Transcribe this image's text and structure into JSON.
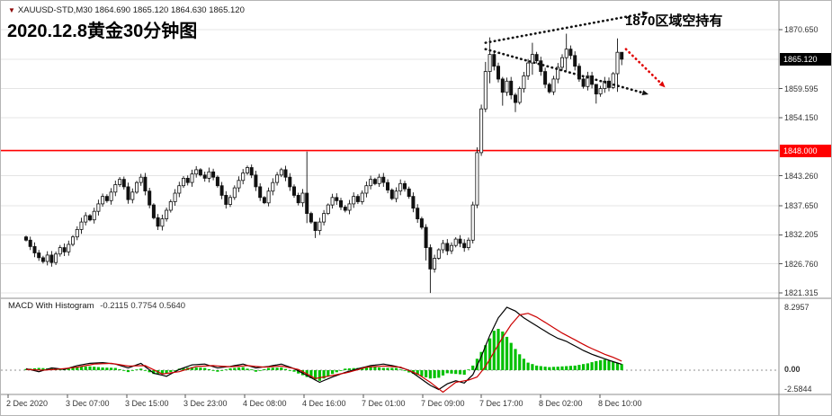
{
  "header": {
    "quote": "XAUUSD-STD,M30 1864.690 1865.120 1864.630 1865.120",
    "title": "2020.12.8黄金30分钟图"
  },
  "annotation": {
    "text": "1870区域空持有"
  },
  "price_axis": {
    "labels": [
      "1870.650",
      "1859.595",
      "1854.150",
      "1843.260",
      "1837.650",
      "1832.205",
      "1826.760",
      "1821.315"
    ],
    "current": "1865.120",
    "red_line": "1848.000"
  },
  "time_axis": {
    "labels": [
      "2 Dec 2020",
      "3 Dec 07:00",
      "3 Dec 15:00",
      "3 Dec 23:00",
      "4 Dec 08:00",
      "4 Dec 16:00",
      "7 Dec 01:00",
      "7 Dec 09:00",
      "7 Dec 17:00",
      "8 Dec 02:00",
      "8 Dec 10:00"
    ]
  },
  "macd": {
    "label": "MACD With Histogram",
    "values": "-0.2115 0.7754 0.5640",
    "axis_top": "8.2957",
    "axis_zero": "0.00",
    "axis_bottom": "-2.5844"
  },
  "colors": {
    "up_candle": "#ffffff",
    "down_candle": "#111111",
    "candle_outline": "#111111",
    "histogram": "#00c000",
    "macd_line": "#000000",
    "signal_line": "#cc0000",
    "red_line": "#ff0000",
    "grid": "#e4e4e4",
    "separator": "#8c8c8c"
  },
  "chart_data": {
    "type": "candlestick_with_macd",
    "symbol": "XAUUSD-STD",
    "timeframe": "M30",
    "title": "2020.12.8黄金30分钟图",
    "quote_ohlc": [
      1864.69,
      1865.12,
      1864.63,
      1865.12
    ],
    "price_axis_labels": [
      1870.65,
      1865.12,
      1859.595,
      1854.15,
      1848.0,
      1843.26,
      1837.65,
      1832.205,
      1826.76,
      1821.315
    ],
    "ylim": [
      1818.5,
      1876.0
    ],
    "red_hline": 1848.0,
    "current_price": 1865.12,
    "time_labels": [
      "2 Dec 2020",
      "3 Dec 07:00",
      "3 Dec 15:00",
      "3 Dec 23:00",
      "4 Dec 08:00",
      "4 Dec 16:00",
      "7 Dec 01:00",
      "7 Dec 09:00",
      "7 Dec 17:00",
      "8 Dec 02:00",
      "8 Dec 10:00"
    ],
    "candles": {
      "first_open": 1831.8,
      "closes": [
        1831.2,
        1830.0,
        1828.8,
        1827.9,
        1827.2,
        1828.4,
        1827.0,
        1828.6,
        1829.8,
        1829.0,
        1830.4,
        1831.8,
        1833.2,
        1834.6,
        1835.8,
        1835.0,
        1836.6,
        1838.0,
        1839.4,
        1838.6,
        1840.2,
        1841.6,
        1842.6,
        1841.2,
        1838.8,
        1840.2,
        1842.0,
        1843.0,
        1840.4,
        1837.8,
        1835.4,
        1833.8,
        1835.2,
        1836.8,
        1838.4,
        1840.0,
        1841.4,
        1842.8,
        1842.0,
        1843.6,
        1844.4,
        1843.4,
        1842.8,
        1844.0,
        1843.0,
        1841.4,
        1839.6,
        1837.9,
        1839.2,
        1841.0,
        1842.4,
        1843.8,
        1844.8,
        1843.4,
        1841.2,
        1839.2,
        1838.2,
        1840.4,
        1842.0,
        1843.4,
        1844.4,
        1843.0,
        1841.2,
        1839.6,
        1838.2,
        1840.0,
        1836.2,
        1834.6,
        1833.0,
        1834.6,
        1836.2,
        1837.8,
        1839.2,
        1838.6,
        1837.4,
        1836.8,
        1838.0,
        1839.4,
        1838.4,
        1840.0,
        1841.4,
        1842.6,
        1841.8,
        1843.0,
        1842.0,
        1840.6,
        1839.0,
        1840.4,
        1841.8,
        1840.8,
        1839.4,
        1837.2,
        1835.2,
        1833.6,
        1829.8,
        1825.8,
        1827.8,
        1829.4,
        1830.6,
        1829.2,
        1830.2,
        1831.4,
        1830.6,
        1829.8,
        1831.2,
        1837.8,
        1847.6,
        1855.8,
        1862.8,
        1866.0,
        1863.8,
        1861.4,
        1858.9,
        1861.0,
        1858.4,
        1857.0,
        1859.6,
        1862.0,
        1864.4,
        1866.0,
        1864.8,
        1862.8,
        1860.4,
        1859.0,
        1861.4,
        1863.6,
        1865.4,
        1867.0,
        1865.8,
        1863.8,
        1861.4,
        1860.0,
        1862.0,
        1860.4,
        1858.6,
        1859.6,
        1861.0,
        1859.8,
        1862.4,
        1866.4,
        1865.1
      ],
      "wick_overrides": {
        "66": [
          1847.8,
          1834.4
        ],
        "68": [
          1833.8,
          1831.6
        ],
        "94": [
          1834.2,
          1827.4
        ],
        "95": [
          1830.4,
          1821.3
        ],
        "105": [
          1838.4,
          1830.6
        ],
        "106": [
          1848.6,
          1837.2
        ],
        "107": [
          1856.6,
          1847.0
        ],
        "108": [
          1864.6,
          1855.2
        ],
        "109": [
          1869.2,
          1860.6
        ],
        "112": [
          1861.8,
          1856.4
        ],
        "115": [
          1858.8,
          1855.2
        ],
        "119": [
          1868.2,
          1862.2
        ],
        "127": [
          1869.9,
          1863.0
        ],
        "134": [
          1860.2,
          1856.8
        ],
        "139": [
          1869.0,
          1859.0
        ],
        "140": [
          1865.6,
          1864.0
        ]
      }
    },
    "trendlines": [
      {
        "name": "upper-broadening-line",
        "from_bar": 108,
        "from_price": 1868.2,
        "to_bar": 146,
        "to_price": 1873.8,
        "style": "dotted-black-arrow"
      },
      {
        "name": "lower-broadening-line",
        "from_bar": 108,
        "from_price": 1867.0,
        "to_bar": 146,
        "to_price": 1858.6,
        "style": "dotted-black-arrow"
      },
      {
        "name": "short-entry-arrow",
        "from_bar": 141,
        "from_price": 1867.0,
        "to_bar": 150,
        "to_price": 1860.0,
        "style": "dotted-red-arrow"
      }
    ],
    "macd": {
      "ylim": [
        -3.2,
        8.5
      ],
      "hist_points": [
        [
          0,
          0.15
        ],
        [
          3,
          0.3
        ],
        [
          6,
          0.2
        ],
        [
          9,
          0.1
        ],
        [
          12,
          0.45
        ],
        [
          15,
          0.5
        ],
        [
          18,
          0.35
        ],
        [
          21,
          0.3
        ],
        [
          24,
          -0.25
        ],
        [
          27,
          0.2
        ],
        [
          30,
          -0.5
        ],
        [
          33,
          -0.45
        ],
        [
          36,
          0.2
        ],
        [
          39,
          0.4
        ],
        [
          42,
          0.3
        ],
        [
          45,
          -0.2
        ],
        [
          48,
          0.25
        ],
        [
          51,
          0.4
        ],
        [
          54,
          -0.2
        ],
        [
          57,
          0.3
        ],
        [
          60,
          0.35
        ],
        [
          63,
          -0.2
        ],
        [
          66,
          -0.9
        ],
        [
          69,
          -1.4
        ],
        [
          72,
          -0.5
        ],
        [
          75,
          0.2
        ],
        [
          78,
          0.3
        ],
        [
          81,
          0.5
        ],
        [
          84,
          0.3
        ],
        [
          87,
          0.3
        ],
        [
          90,
          -0.3
        ],
        [
          93,
          -0.8
        ],
        [
          95,
          -1.1
        ],
        [
          97,
          -1.0
        ],
        [
          99,
          -0.4
        ],
        [
          101,
          -0.5
        ],
        [
          103,
          -0.6
        ],
        [
          105,
          0.6
        ],
        [
          107,
          2.4
        ],
        [
          109,
          4.2
        ],
        [
          110,
          5.2
        ],
        [
          111,
          5.45
        ],
        [
          112,
          5.1
        ],
        [
          113,
          4.4
        ],
        [
          114,
          3.6
        ],
        [
          115,
          2.8
        ],
        [
          116,
          2.1
        ],
        [
          117,
          1.5
        ],
        [
          118,
          1.0
        ],
        [
          120,
          0.6
        ],
        [
          123,
          0.4
        ],
        [
          126,
          0.5
        ],
        [
          129,
          0.6
        ],
        [
          132,
          0.9
        ],
        [
          134,
          1.2
        ],
        [
          136,
          1.4
        ],
        [
          138,
          1.1
        ],
        [
          140,
          0.8
        ]
      ],
      "line_points": [
        [
          0,
          0.2
        ],
        [
          3,
          -0.2
        ],
        [
          6,
          0.3
        ],
        [
          9,
          0.1
        ],
        [
          12,
          0.6
        ],
        [
          15,
          0.9
        ],
        [
          18,
          1.0
        ],
        [
          21,
          0.8
        ],
        [
          24,
          0.3
        ],
        [
          27,
          0.9
        ],
        [
          30,
          -0.4
        ],
        [
          33,
          -0.8
        ],
        [
          36,
          0.1
        ],
        [
          39,
          0.7
        ],
        [
          42,
          0.8
        ],
        [
          45,
          0.3
        ],
        [
          48,
          0.5
        ],
        [
          51,
          0.8
        ],
        [
          54,
          0.3
        ],
        [
          57,
          0.5
        ],
        [
          60,
          0.8
        ],
        [
          63,
          0.2
        ],
        [
          66,
          -0.7
        ],
        [
          69,
          -1.6
        ],
        [
          72,
          -0.9
        ],
        [
          75,
          -0.3
        ],
        [
          78,
          0.2
        ],
        [
          81,
          0.6
        ],
        [
          84,
          0.8
        ],
        [
          87,
          0.5
        ],
        [
          90,
          0.0
        ],
        [
          93,
          -1.2
        ],
        [
          95,
          -2.0
        ],
        [
          97,
          -2.55
        ],
        [
          99,
          -1.8
        ],
        [
          101,
          -1.4
        ],
        [
          103,
          -1.7
        ],
        [
          105,
          -0.6
        ],
        [
          107,
          1.8
        ],
        [
          109,
          4.6
        ],
        [
          111,
          6.9
        ],
        [
          113,
          8.3
        ],
        [
          115,
          7.8
        ],
        [
          117,
          6.9
        ],
        [
          119,
          6.2
        ],
        [
          121,
          5.5
        ],
        [
          123,
          4.8
        ],
        [
          125,
          4.2
        ],
        [
          127,
          3.8
        ],
        [
          129,
          3.2
        ],
        [
          131,
          2.6
        ],
        [
          133,
          2.1
        ],
        [
          135,
          1.7
        ],
        [
          137,
          1.3
        ],
        [
          139,
          0.95
        ],
        [
          140,
          0.78
        ]
      ],
      "signal_points": [
        [
          0,
          0.1
        ],
        [
          4,
          0.0
        ],
        [
          8,
          0.15
        ],
        [
          12,
          0.4
        ],
        [
          16,
          0.8
        ],
        [
          20,
          0.9
        ],
        [
          24,
          0.55
        ],
        [
          28,
          0.6
        ],
        [
          32,
          -0.5
        ],
        [
          36,
          -0.2
        ],
        [
          40,
          0.5
        ],
        [
          44,
          0.6
        ],
        [
          48,
          0.45
        ],
        [
          52,
          0.6
        ],
        [
          56,
          0.4
        ],
        [
          60,
          0.55
        ],
        [
          64,
          0.1
        ],
        [
          68,
          -1.1
        ],
        [
          72,
          -0.7
        ],
        [
          76,
          -0.25
        ],
        [
          80,
          0.4
        ],
        [
          84,
          0.55
        ],
        [
          88,
          0.4
        ],
        [
          92,
          -0.5
        ],
        [
          95,
          -1.6
        ],
        [
          98,
          -2.9
        ],
        [
          101,
          -1.6
        ],
        [
          104,
          -1.3
        ],
        [
          106,
          -0.9
        ],
        [
          108,
          0.5
        ],
        [
          110,
          2.4
        ],
        [
          112,
          4.3
        ],
        [
          114,
          6.0
        ],
        [
          116,
          7.3
        ],
        [
          118,
          7.5
        ],
        [
          120,
          7.0
        ],
        [
          122,
          6.3
        ],
        [
          124,
          5.6
        ],
        [
          126,
          4.9
        ],
        [
          128,
          4.3
        ],
        [
          130,
          3.7
        ],
        [
          132,
          3.1
        ],
        [
          134,
          2.6
        ],
        [
          136,
          2.1
        ],
        [
          138,
          1.7
        ],
        [
          140,
          1.2
        ]
      ]
    }
  }
}
